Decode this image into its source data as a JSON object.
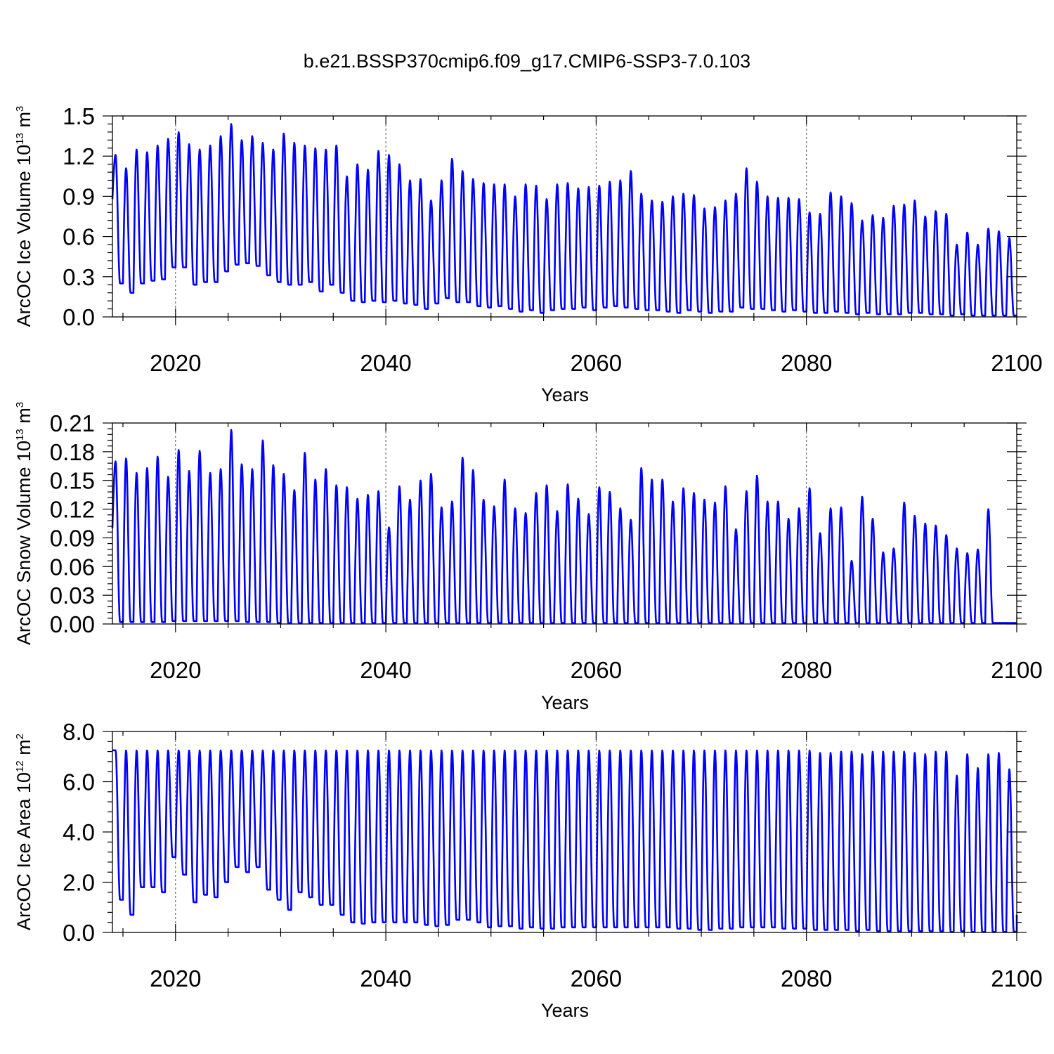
{
  "title": "b.e21.BSSP370cmip6.f09_g17.CMIP6-SSP3-7.0.103",
  "line_color": "#0000ff",
  "chart_data": [
    {
      "type": "line",
      "title": "b.e21.BSSP370cmip6.f09_g17.CMIP6-SSP3-7.0.103",
      "xlabel": "Years",
      "ylabel": "ArcOC Ice Volume 10",
      "ylabel_exp": "13",
      "ylabel_unit": " m",
      "ylabel_unit_exp": "3",
      "xlim": [
        2014,
        2100
      ],
      "ylim": [
        0,
        1.5
      ],
      "xticks": [
        2020,
        2040,
        2060,
        2080,
        2100
      ],
      "xtick_labels": [
        "2020",
        "2040",
        "2060",
        "2080",
        "2100"
      ],
      "yticks": [
        0,
        0.3,
        0.6,
        0.9,
        1.2,
        1.5
      ],
      "ytick_labels": [
        "0.0",
        "0.3",
        "0.6",
        "0.9",
        "1.2",
        "1.5"
      ],
      "grid_x": true,
      "seasonal_cycle": true,
      "series": [
        {
          "name": "ArcOC Ice Volume",
          "years": [
            2014,
            2015,
            2016,
            2017,
            2018,
            2019,
            2020,
            2021,
            2022,
            2023,
            2024,
            2025,
            2026,
            2027,
            2028,
            2029,
            2030,
            2031,
            2032,
            2033,
            2034,
            2035,
            2036,
            2037,
            2038,
            2039,
            2040,
            2041,
            2042,
            2043,
            2044,
            2045,
            2046,
            2047,
            2048,
            2049,
            2050,
            2051,
            2052,
            2053,
            2054,
            2055,
            2056,
            2057,
            2058,
            2059,
            2060,
            2061,
            2062,
            2063,
            2064,
            2065,
            2066,
            2067,
            2068,
            2069,
            2070,
            2071,
            2072,
            2073,
            2074,
            2075,
            2076,
            2077,
            2078,
            2079,
            2080,
            2081,
            2082,
            2083,
            2084,
            2085,
            2086,
            2087,
            2088,
            2089,
            2090,
            2091,
            2092,
            2093,
            2094,
            2095,
            2096,
            2097,
            2098,
            2099
          ],
          "annual_max": [
            1.21,
            1.11,
            1.25,
            1.23,
            1.28,
            1.33,
            1.38,
            1.29,
            1.25,
            1.28,
            1.35,
            1.44,
            1.32,
            1.35,
            1.3,
            1.25,
            1.37,
            1.3,
            1.28,
            1.26,
            1.25,
            1.28,
            1.05,
            1.14,
            1.1,
            1.24,
            1.21,
            1.14,
            1.02,
            1.03,
            0.87,
            1.02,
            1.18,
            1.09,
            1.03,
            1.0,
            0.99,
            0.99,
            0.9,
            0.99,
            0.98,
            0.88,
            0.99,
            1.0,
            0.96,
            0.97,
            0.98,
            1.01,
            1.02,
            1.09,
            0.92,
            0.87,
            0.86,
            0.9,
            0.92,
            0.91,
            0.81,
            0.82,
            0.87,
            0.92,
            1.11,
            1.01,
            0.9,
            0.89,
            0.89,
            0.88,
            0.78,
            0.77,
            0.93,
            0.9,
            0.85,
            0.72,
            0.76,
            0.74,
            0.83,
            0.84,
            0.87,
            0.75,
            0.79,
            0.77,
            0.54,
            0.63,
            0.54,
            0.66,
            0.64,
            0.59
          ],
          "annual_min": [
            0.25,
            0.18,
            0.25,
            0.27,
            0.28,
            0.37,
            0.37,
            0.24,
            0.26,
            0.26,
            0.34,
            0.39,
            0.4,
            0.38,
            0.31,
            0.26,
            0.24,
            0.24,
            0.26,
            0.19,
            0.24,
            0.18,
            0.12,
            0.11,
            0.12,
            0.11,
            0.12,
            0.1,
            0.09,
            0.06,
            0.1,
            0.14,
            0.11,
            0.11,
            0.08,
            0.07,
            0.08,
            0.06,
            0.04,
            0.05,
            0.03,
            0.05,
            0.06,
            0.06,
            0.07,
            0.05,
            0.07,
            0.08,
            0.07,
            0.06,
            0.05,
            0.05,
            0.04,
            0.03,
            0.05,
            0.04,
            0.03,
            0.04,
            0.04,
            0.07,
            0.06,
            0.06,
            0.05,
            0.04,
            0.05,
            0.04,
            0.03,
            0.03,
            0.04,
            0.03,
            0.02,
            0.03,
            0.02,
            0.02,
            0.02,
            0.03,
            0.03,
            0.02,
            0.02,
            0.01,
            0.02,
            0.01,
            0.01,
            0.01,
            0.01,
            0.01
          ],
          "start_value": 0.88,
          "end_value": 0.01
        }
      ]
    },
    {
      "type": "line",
      "xlabel": "Years",
      "ylabel": "ArcOC Snow Volume 10",
      "ylabel_exp": "13",
      "ylabel_unit": " m",
      "ylabel_unit_exp": "3",
      "xlim": [
        2014,
        2100
      ],
      "ylim": [
        0,
        0.21
      ],
      "xticks": [
        2020,
        2040,
        2060,
        2080,
        2100
      ],
      "xtick_labels": [
        "2020",
        "2040",
        "2060",
        "2080",
        "2100"
      ],
      "yticks": [
        0,
        0.03,
        0.06,
        0.09,
        0.12,
        0.15,
        0.18,
        0.21
      ],
      "ytick_labels": [
        "0.00",
        "0.03",
        "0.06",
        "0.09",
        "0.12",
        "0.15",
        "0.18",
        "0.21"
      ],
      "grid_x": true,
      "seasonal_cycle": true,
      "series": [
        {
          "name": "ArcOC Snow Volume",
          "years": [
            2014,
            2015,
            2016,
            2017,
            2018,
            2019,
            2020,
            2021,
            2022,
            2023,
            2024,
            2025,
            2026,
            2027,
            2028,
            2029,
            2030,
            2031,
            2032,
            2033,
            2034,
            2035,
            2036,
            2037,
            2038,
            2039,
            2040,
            2041,
            2042,
            2043,
            2044,
            2045,
            2046,
            2047,
            2048,
            2049,
            2050,
            2051,
            2052,
            2053,
            2054,
            2055,
            2056,
            2057,
            2058,
            2059,
            2060,
            2061,
            2062,
            2063,
            2064,
            2065,
            2066,
            2067,
            2068,
            2069,
            2070,
            2071,
            2072,
            2073,
            2074,
            2075,
            2076,
            2077,
            2078,
            2079,
            2080,
            2081,
            2082,
            2083,
            2084,
            2085,
            2086,
            2087,
            2088,
            2089,
            2090,
            2091,
            2092,
            2093,
            2094,
            2095,
            2096,
            2097,
            2098,
            2099
          ],
          "annual_max": [
            0.17,
            0.173,
            0.158,
            0.163,
            0.175,
            0.154,
            0.182,
            0.16,
            0.181,
            0.158,
            0.162,
            0.203,
            0.167,
            0.162,
            0.192,
            0.166,
            0.157,
            0.14,
            0.179,
            0.151,
            0.162,
            0.145,
            0.143,
            0.131,
            0.135,
            0.139,
            0.101,
            0.144,
            0.13,
            0.15,
            0.157,
            0.122,
            0.128,
            0.174,
            0.161,
            0.13,
            0.123,
            0.151,
            0.121,
            0.116,
            0.137,
            0.145,
            0.118,
            0.146,
            0.131,
            0.115,
            0.143,
            0.138,
            0.121,
            0.109,
            0.163,
            0.151,
            0.151,
            0.128,
            0.142,
            0.137,
            0.13,
            0.127,
            0.144,
            0.099,
            0.139,
            0.155,
            0.128,
            0.128,
            0.11,
            0.121,
            0.142,
            0.095,
            0.121,
            0.122,
            0.066,
            0.133,
            0.11,
            0.075,
            0.079,
            0.127,
            0.113,
            0.105,
            0.103,
            0.093,
            0.079,
            0.074,
            0.078,
            0.12,
            0.001,
            0.001
          ],
          "annual_min": [
            0.002,
            0.002,
            0.002,
            0.002,
            0.002,
            0.003,
            0.003,
            0.003,
            0.003,
            0.003,
            0.003,
            0.003,
            0.002,
            0.002,
            0.002,
            0.001,
            0.001,
            0.001,
            0.001,
            0.001,
            0.001,
            0.001,
            0.001,
            0.001,
            0.001,
            0.001,
            0.001,
            0.001,
            0.001,
            0.001,
            0.001,
            0.001,
            0.001,
            0.001,
            0.001,
            0.001,
            0.001,
            0.001,
            0.001,
            0.001,
            0.001,
            0.001,
            0.001,
            0.001,
            0.001,
            0.001,
            0.001,
            0.001,
            0.001,
            0.001,
            0.001,
            0.001,
            0.001,
            0.001,
            0.001,
            0.001,
            0.001,
            0.001,
            0.001,
            0.001,
            0.001,
            0.001,
            0.001,
            0.001,
            0.001,
            0.001,
            0.001,
            0.001,
            0.001,
            0.001,
            0.001,
            0.001,
            0.001,
            0.001,
            0.001,
            0.001,
            0.001,
            0.001,
            0.001,
            0.001,
            0.001,
            0.001,
            0.001,
            0.001,
            0.001,
            0.001
          ],
          "start_value": 0.1,
          "end_value": 0.001
        }
      ]
    },
    {
      "type": "line",
      "xlabel": "Years",
      "ylabel": "ArcOC Ice Area 10",
      "ylabel_exp": "12",
      "ylabel_unit": " m",
      "ylabel_unit_exp": "2",
      "xlim": [
        2014,
        2100
      ],
      "ylim": [
        0,
        8
      ],
      "xticks": [
        2020,
        2040,
        2060,
        2080,
        2100
      ],
      "xtick_labels": [
        "2020",
        "2040",
        "2060",
        "2080",
        "2100"
      ],
      "yticks": [
        0,
        2,
        4,
        6,
        8
      ],
      "ytick_labels": [
        "0.0",
        "2.0",
        "4.0",
        "6.0",
        "8.0"
      ],
      "grid_x": true,
      "seasonal_cycle": true,
      "series": [
        {
          "name": "ArcOC Ice Area",
          "years": [
            2014,
            2015,
            2016,
            2017,
            2018,
            2019,
            2020,
            2021,
            2022,
            2023,
            2024,
            2025,
            2026,
            2027,
            2028,
            2029,
            2030,
            2031,
            2032,
            2033,
            2034,
            2035,
            2036,
            2037,
            2038,
            2039,
            2040,
            2041,
            2042,
            2043,
            2044,
            2045,
            2046,
            2047,
            2048,
            2049,
            2050,
            2051,
            2052,
            2053,
            2054,
            2055,
            2056,
            2057,
            2058,
            2059,
            2060,
            2061,
            2062,
            2063,
            2064,
            2065,
            2066,
            2067,
            2068,
            2069,
            2070,
            2071,
            2072,
            2073,
            2074,
            2075,
            2076,
            2077,
            2078,
            2079,
            2080,
            2081,
            2082,
            2083,
            2084,
            2085,
            2086,
            2087,
            2088,
            2089,
            2090,
            2091,
            2092,
            2093,
            2094,
            2095,
            2096,
            2097,
            2098,
            2099
          ],
          "annual_max": [
            7.25,
            7.25,
            7.25,
            7.25,
            7.25,
            7.25,
            7.25,
            7.25,
            7.25,
            7.25,
            7.25,
            7.25,
            7.25,
            7.25,
            7.25,
            7.25,
            7.25,
            7.25,
            7.25,
            7.25,
            7.25,
            7.25,
            7.25,
            7.25,
            7.25,
            7.25,
            7.25,
            7.25,
            7.25,
            7.25,
            7.25,
            7.25,
            7.25,
            7.25,
            7.25,
            7.25,
            7.25,
            7.25,
            7.25,
            7.25,
            7.25,
            7.25,
            7.25,
            7.25,
            7.25,
            7.25,
            7.25,
            7.25,
            7.25,
            7.25,
            7.25,
            7.25,
            7.25,
            7.25,
            7.25,
            7.25,
            7.25,
            7.25,
            7.25,
            7.25,
            7.25,
            7.25,
            7.25,
            7.25,
            7.25,
            7.25,
            7.25,
            7.15,
            7.15,
            7.2,
            7.2,
            7.1,
            7.2,
            7.2,
            7.2,
            7.2,
            7.15,
            7.1,
            7.2,
            7.2,
            6.25,
            7.1,
            6.55,
            7.1,
            7.15,
            6.5
          ],
          "annual_min": [
            1.3,
            0.7,
            1.8,
            1.8,
            1.6,
            3.0,
            2.3,
            1.2,
            1.5,
            1.4,
            2.0,
            2.6,
            2.4,
            2.6,
            1.7,
            1.3,
            0.9,
            1.6,
            1.4,
            1.1,
            1.1,
            0.7,
            0.4,
            0.35,
            0.4,
            0.4,
            0.4,
            0.4,
            0.4,
            0.3,
            0.25,
            0.3,
            0.5,
            0.5,
            0.4,
            0.2,
            0.25,
            0.25,
            0.15,
            0.2,
            0.15,
            0.15,
            0.2,
            0.2,
            0.2,
            0.2,
            0.2,
            0.2,
            0.2,
            0.2,
            0.2,
            0.2,
            0.2,
            0.15,
            0.15,
            0.1,
            0.1,
            0.15,
            0.15,
            0.2,
            0.2,
            0.2,
            0.2,
            0.15,
            0.15,
            0.15,
            0.1,
            0.1,
            0.1,
            0.1,
            0.05,
            0.1,
            0.05,
            0.05,
            0.05,
            0.05,
            0.05,
            0.05,
            0.05,
            0.02,
            0.05,
            0.02,
            0.02,
            0.02,
            0.02,
            0.02
          ],
          "start_value": 7.25,
          "end_value": 0.7
        }
      ]
    }
  ]
}
